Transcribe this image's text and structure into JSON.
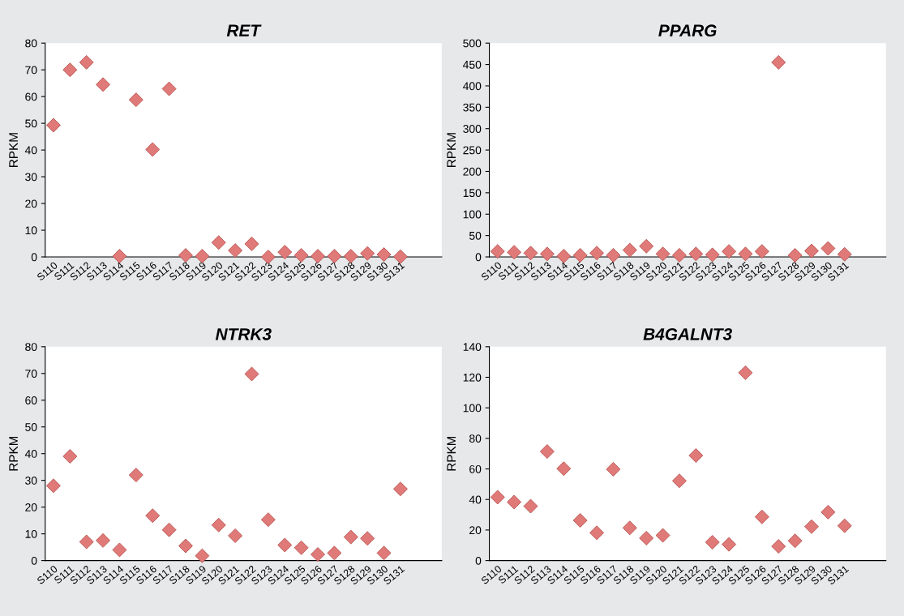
{
  "chart_data": [
    {
      "type": "scatter",
      "title": "RET",
      "ylabel": "RPKM",
      "categories": [
        "S110",
        "S111",
        "S112",
        "S113",
        "S114",
        "S115",
        "S116",
        "S117",
        "S118",
        "S119",
        "S120",
        "S121",
        "S122",
        "S123",
        "S124",
        "S125",
        "S126",
        "S127",
        "S128",
        "S129",
        "S130",
        "S131"
      ],
      "ylim": [
        0,
        80
      ],
      "yticks": [
        0,
        10,
        20,
        30,
        40,
        50,
        60,
        70,
        80
      ],
      "marker": "diamond",
      "grid": false,
      "legend": false,
      "series": [
        {
          "color": "#e07a78",
          "values": [
            49.3,
            70,
            72.8,
            64.5,
            0.3,
            58.8,
            40.2,
            62.9,
            0.6,
            0.3,
            5.4,
            2.4,
            4.9,
            0,
            1.8,
            0.6,
            0.3,
            0.3,
            0.3,
            1.3,
            0.9,
            0.1
          ]
        }
      ]
    },
    {
      "type": "scatter",
      "title": "PPARG",
      "ylabel": "RPKM",
      "categories": [
        "S110",
        "S111",
        "S112",
        "S113",
        "S114",
        "S115",
        "S116",
        "S117",
        "S118",
        "S119",
        "S120",
        "S121",
        "S122",
        "S123",
        "S124",
        "S125",
        "S126",
        "S127",
        "S128",
        "S129",
        "S130",
        "S131"
      ],
      "ylim": [
        0,
        500
      ],
      "yticks": [
        0,
        50,
        100,
        150,
        200,
        250,
        300,
        350,
        400,
        450,
        500
      ],
      "marker": "diamond",
      "grid": false,
      "legend": false,
      "series": [
        {
          "color": "#e07a78",
          "values": [
            13,
            11,
            9,
            7,
            2,
            4,
            9,
            4,
            16,
            25,
            7,
            4,
            7,
            5,
            13,
            7,
            13,
            455,
            4,
            14,
            20,
            6
          ]
        }
      ]
    },
    {
      "type": "scatter",
      "title": "NTRK3",
      "ylabel": "RPKM",
      "categories": [
        "S110",
        "S111",
        "S112",
        "S113",
        "S114",
        "S115",
        "S116",
        "S117",
        "S118",
        "S119",
        "S120",
        "S121",
        "S122",
        "S123",
        "S124",
        "S125",
        "S126",
        "S127",
        "S128",
        "S129",
        "S130",
        "S131"
      ],
      "ylim": [
        0,
        80
      ],
      "yticks": [
        0,
        10,
        20,
        30,
        40,
        50,
        60,
        70,
        80
      ],
      "marker": "diamond",
      "grid": false,
      "legend": false,
      "series": [
        {
          "color": "#e07a78",
          "values": [
            28,
            39,
            7,
            7.5,
            4,
            32,
            16.8,
            11.5,
            5.5,
            1.8,
            13.3,
            9.3,
            69.8,
            15.3,
            5.8,
            4.8,
            2.3,
            2.8,
            8.8,
            8.3,
            2.8,
            26.8
          ]
        }
      ]
    },
    {
      "type": "scatter",
      "title": "B4GALNT3",
      "ylabel": "RPKM",
      "categories": [
        "S110",
        "S111",
        "S112",
        "S113",
        "S114",
        "S115",
        "S116",
        "S117",
        "S118",
        "S119",
        "S120",
        "S121",
        "S122",
        "S123",
        "S124",
        "S125",
        "S126",
        "S127",
        "S128",
        "S129",
        "S130",
        "S131"
      ],
      "ylim": [
        0,
        140
      ],
      "yticks": [
        0,
        20,
        40,
        60,
        80,
        100,
        120,
        140
      ],
      "marker": "diamond",
      "grid": false,
      "legend": false,
      "series": [
        {
          "color": "#e07a78",
          "values": [
            41.5,
            38.3,
            35.6,
            71.4,
            60.2,
            26.3,
            18.2,
            59.8,
            21.4,
            14.7,
            16.5,
            52.2,
            68.8,
            12,
            10.6,
            123,
            28.6,
            9.3,
            12.9,
            22.2,
            31.7,
            22.8
          ]
        }
      ]
    }
  ]
}
